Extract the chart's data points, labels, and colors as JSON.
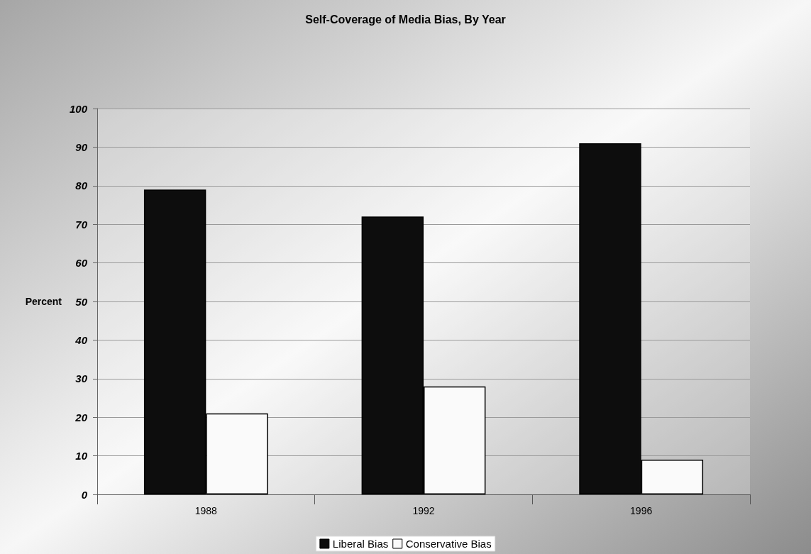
{
  "chart_data": {
    "type": "bar",
    "title": "Self-Coverage of Media Bias, By Year",
    "ylabel": "Percent",
    "categories": [
      "1988",
      "1992",
      "1996"
    ],
    "series": [
      {
        "name": "Liberal Bias",
        "color": "#0d0d0d",
        "values": [
          79,
          72,
          91
        ]
      },
      {
        "name": "Conservative Bias",
        "color": "#fafafa",
        "values": [
          21,
          28,
          9
        ]
      }
    ],
    "ylim": [
      0,
      100
    ],
    "yticks": [
      0,
      10,
      20,
      30,
      40,
      50,
      60,
      70,
      80,
      90,
      100
    ],
    "grid": "y",
    "legend": "bottom"
  }
}
